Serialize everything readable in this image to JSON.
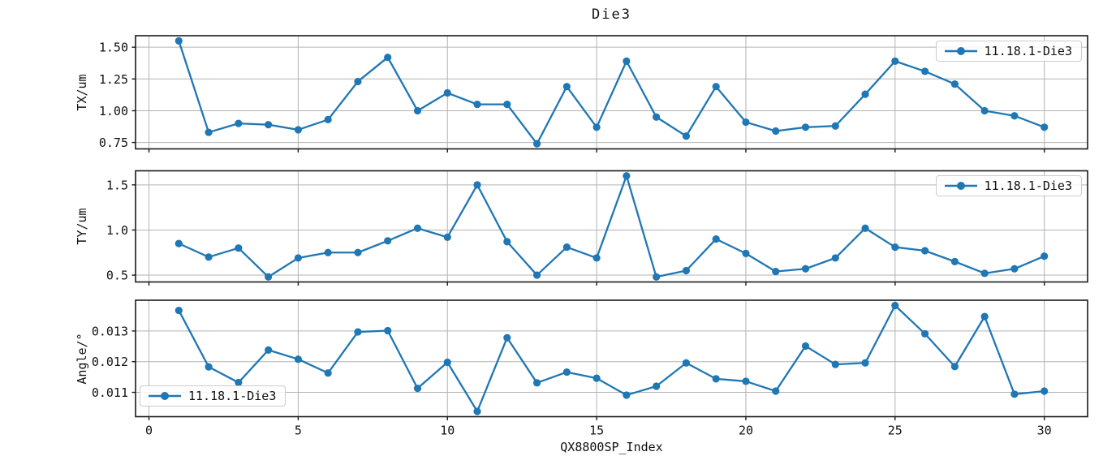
{
  "window": {
    "title": "Die3"
  },
  "x_axis": {
    "label": "QX8800SP_Index",
    "ticks": [
      0,
      5,
      10,
      15,
      20,
      25,
      30
    ],
    "tick_labels": [
      "0",
      "5",
      "10",
      "15",
      "20",
      "25",
      "30"
    ],
    "xlim": [
      -0.45,
      31.45
    ]
  },
  "style": {
    "series_color": "#1f77b4",
    "grid_color": "#b3b3b3",
    "spine_color": "#1a1a1a",
    "text_color": "#111111",
    "legend_border": "#cccccc",
    "background": "#ffffff"
  },
  "chart_data": [
    {
      "type": "line",
      "title": "Die3",
      "ylabel": "TX/um",
      "grid": true,
      "legend": {
        "label": "11.18.1-Die3",
        "position": "upper right"
      },
      "yticks": [
        0.75,
        1.0,
        1.25,
        1.5
      ],
      "ytick_labels": [
        "0.75",
        "1.00",
        "1.25",
        "1.50"
      ],
      "ylim": [
        0.6995,
        1.5905
      ],
      "series": [
        {
          "name": "11.18.1-Die3",
          "x": [
            1,
            2,
            3,
            4,
            5,
            6,
            7,
            8,
            9,
            10,
            11,
            12,
            13,
            14,
            15,
            16,
            17,
            18,
            19,
            20,
            21,
            22,
            23,
            24,
            25,
            26,
            27,
            28,
            29,
            30
          ],
          "y": [
            1.55,
            0.83,
            0.9,
            0.89,
            0.85,
            0.93,
            1.23,
            1.42,
            1.0,
            1.14,
            1.05,
            1.05,
            0.74,
            1.19,
            0.87,
            1.39,
            0.95,
            0.8,
            1.19,
            0.91,
            0.84,
            0.87,
            0.88,
            1.13,
            1.39,
            1.31,
            1.21,
            1.0,
            0.96,
            0.87
          ]
        }
      ]
    },
    {
      "type": "line",
      "ylabel": "TY/um",
      "grid": true,
      "legend": {
        "label": "11.18.1-Die3",
        "position": "upper right"
      },
      "yticks": [
        0.5,
        1.0,
        1.5
      ],
      "ytick_labels": [
        "0.5",
        "1.0",
        "1.5"
      ],
      "ylim": [
        0.424,
        1.656
      ],
      "series": [
        {
          "name": "11.18.1-Die3",
          "x": [
            1,
            2,
            3,
            4,
            5,
            6,
            7,
            8,
            9,
            10,
            11,
            12,
            13,
            14,
            15,
            16,
            17,
            18,
            19,
            20,
            21,
            22,
            23,
            24,
            25,
            26,
            27,
            28,
            29,
            30
          ],
          "y": [
            0.85,
            0.7,
            0.8,
            0.48,
            0.69,
            0.75,
            0.75,
            0.88,
            1.02,
            0.92,
            1.5,
            0.87,
            0.5,
            0.81,
            0.69,
            1.6,
            0.48,
            0.55,
            0.9,
            0.74,
            0.54,
            0.57,
            0.69,
            1.02,
            0.81,
            0.77,
            0.65,
            0.52,
            0.57,
            0.71
          ]
        }
      ]
    },
    {
      "type": "line",
      "ylabel": "Angle/°",
      "grid": true,
      "legend": {
        "label": "11.18.1-Die3",
        "position": "lower left"
      },
      "yticks": [
        0.011,
        0.012,
        0.013
      ],
      "ytick_labels": [
        "0.011",
        "0.012",
        "0.013"
      ],
      "ylim": [
        0.0102075,
        0.0140025
      ],
      "series": [
        {
          "name": "11.18.1-Die3",
          "x": [
            1,
            2,
            3,
            4,
            5,
            6,
            7,
            8,
            9,
            10,
            11,
            12,
            13,
            14,
            15,
            16,
            17,
            18,
            19,
            20,
            21,
            22,
            23,
            24,
            25,
            26,
            27,
            28,
            29,
            30
          ],
          "y": [
            0.01367,
            0.01183,
            0.01132,
            0.01238,
            0.01208,
            0.01163,
            0.01297,
            0.01301,
            0.01113,
            0.01198,
            0.01038,
            0.01278,
            0.01131,
            0.01166,
            0.01146,
            0.01091,
            0.0112,
            0.01196,
            0.01144,
            0.01136,
            0.01104,
            0.01251,
            0.01191,
            0.01196,
            0.01383,
            0.01291,
            0.01184,
            0.01347,
            0.01094,
            0.01104
          ]
        }
      ]
    }
  ]
}
